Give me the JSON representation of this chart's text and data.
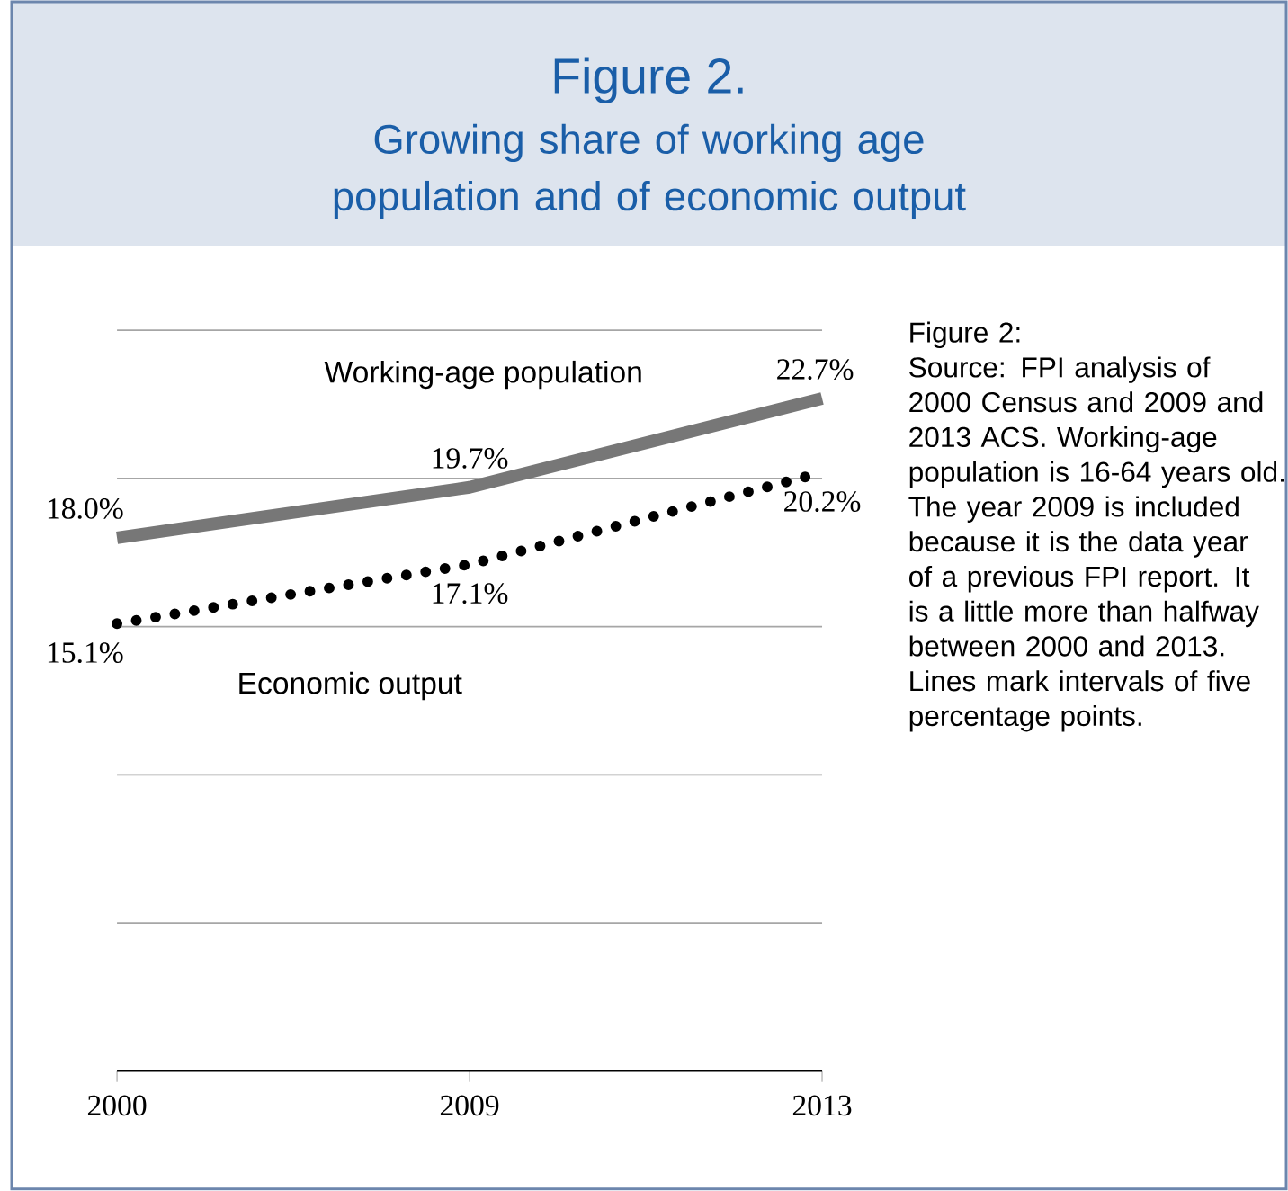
{
  "chart_data": {
    "type": "line",
    "title": "Figure 2.",
    "subtitle": "Growing share of working age population and of economic output",
    "categories": [
      "2000",
      "2009",
      "2013"
    ],
    "series": [
      {
        "name": "Working-age population",
        "color": "#777777",
        "values": [
          18.0,
          19.7,
          22.7
        ],
        "value_labels": [
          "18.0%",
          "19.7%",
          "22.7%"
        ],
        "line_style": "solid"
      },
      {
        "name": "Economic output",
        "color": "#000000",
        "values": [
          15.1,
          17.1,
          20.2
        ],
        "value_labels": [
          "15.1%",
          "17.1%",
          "20.2%"
        ],
        "line_style": "dotted"
      }
    ],
    "ylim": [
      0,
      25
    ],
    "yticks": [
      {
        "value": 5,
        "label": null
      },
      {
        "value": 10,
        "label": null
      },
      {
        "value": 15,
        "label": null
      },
      {
        "value": 20,
        "label": null
      },
      {
        "value": 25,
        "label": null
      }
    ],
    "grid": "y",
    "tick_labels": "x",
    "marker": "none",
    "annotations": [
      "Figure 2:",
      "Source: FPI analysis of 2000 Census and 2009 and 2013 ACS. Working-age population is 16-64 years old. The year 2009 is included because it is the data year of a previous FPI report. It is a little more than halfway between 2000 and 2013. Lines mark intervals of five percentage points."
    ]
  }
}
